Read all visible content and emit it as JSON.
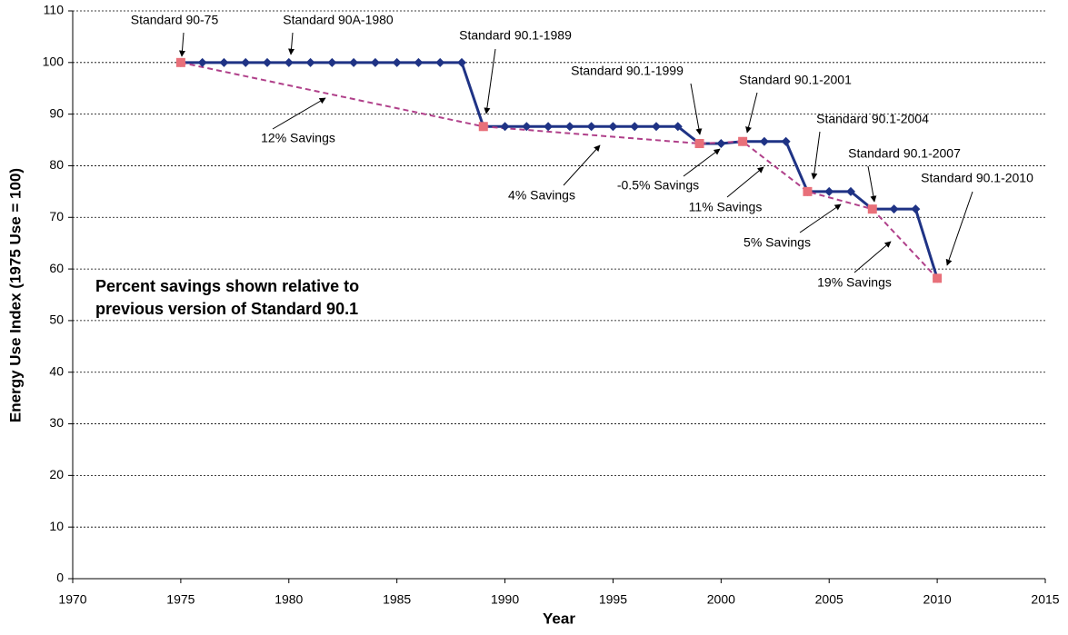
{
  "chart_data": {
    "type": "line",
    "xlabel": "Year",
    "ylabel": "Energy Use Index (1975 Use = 100)",
    "xlim": [
      1970,
      2015
    ],
    "ylim": [
      0,
      110
    ],
    "xticks": [
      1970,
      1975,
      1980,
      1985,
      1990,
      1995,
      2000,
      2005,
      2010,
      2015
    ],
    "yticks": [
      0,
      10,
      20,
      30,
      40,
      50,
      60,
      70,
      80,
      90,
      100,
      110
    ],
    "grid": true,
    "series": [
      {
        "color": "#1f3385",
        "marker": "diamond",
        "dash": false,
        "x": [
          1975,
          1976,
          1977,
          1978,
          1979,
          1980,
          1981,
          1982,
          1983,
          1984,
          1985,
          1986,
          1987,
          1988,
          1989,
          1990,
          1991,
          1992,
          1993,
          1994,
          1995,
          1996,
          1997,
          1998,
          1999,
          2000,
          2001,
          2002,
          2003,
          2004,
          2005,
          2006,
          2007,
          2008,
          2009,
          2010
        ],
        "values": [
          100,
          100,
          100,
          100,
          100,
          100,
          100,
          100,
          100,
          100,
          100,
          100,
          100,
          100,
          87.6,
          87.6,
          87.6,
          87.6,
          87.6,
          87.6,
          87.6,
          87.6,
          87.6,
          87.6,
          84.3,
          84.3,
          84.7,
          84.7,
          84.7,
          75.0,
          75.0,
          75.0,
          71.6,
          71.6,
          71.6,
          58.2
        ]
      },
      {
        "color": "#b0408a",
        "marker": "square",
        "marker_color": "#e8707a",
        "dash": true,
        "x": [
          1975,
          1989,
          1999,
          2001,
          2004,
          2007,
          2010
        ],
        "values": [
          100,
          87.6,
          84.3,
          84.7,
          75.0,
          71.6,
          58.2
        ]
      }
    ],
    "annotations": [
      "Standard 90-75",
      "Standard 90A-1980",
      "Standard 90.1-1989",
      "Standard 90.1-1999",
      "Standard 90.1-2001",
      "Standard 90.1-2004",
      "Standard 90.1-2007",
      "Standard 90.1-2010",
      "12% Savings",
      "4% Savings",
      "-0.5% Savings",
      "11% Savings",
      "5% Savings",
      "19% Savings"
    ],
    "note": [
      "Percent savings shown relative to",
      "previous version of Standard 90.1"
    ]
  }
}
